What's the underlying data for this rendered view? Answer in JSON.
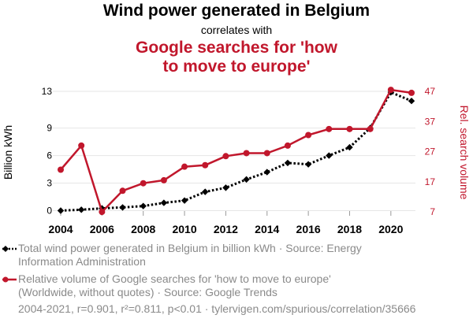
{
  "header": {
    "title": "Wind power generated in Belgium",
    "subtitle": "correlates with",
    "title2_line1": "Google searches for 'how",
    "title2_line2": "to move to europe'"
  },
  "legend": {
    "series1": "Total wind power generated in Belgium in billion kWh · Source: Energy Information Administration",
    "series2": "Relative volume of Google searches for 'how to move to europe' (Worldwide, without quotes) · Source: Google Trends"
  },
  "footer": "2004-2021, r=0.901, r²=0.811, p<0.01 · tylervigen.com/spurious/correlation/35666",
  "chart_data": {
    "type": "line",
    "x": [
      2004,
      2005,
      2006,
      2007,
      2008,
      2009,
      2010,
      2011,
      2012,
      2013,
      2014,
      2015,
      2016,
      2017,
      2018,
      2019,
      2020,
      2021
    ],
    "series": [
      {
        "name": "Total wind power generated in Belgium in billion kWh",
        "axis": "left",
        "color": "#000000",
        "style": "dotted",
        "marker": "diamond",
        "values": [
          0.0,
          0.1,
          0.25,
          0.35,
          0.5,
          0.85,
          1.1,
          2.05,
          2.5,
          3.4,
          4.2,
          5.2,
          5.05,
          6.0,
          6.9,
          9.0,
          12.9,
          11.95
        ]
      },
      {
        "name": "Relative volume of Google searches for 'how to move to europe'",
        "axis": "right",
        "color": "#c1172c",
        "style": "solid",
        "marker": "circle",
        "values": [
          21,
          29,
          7,
          14,
          16.5,
          17.5,
          22,
          22.5,
          25.5,
          26.5,
          26.5,
          29,
          32.5,
          34.5,
          34.5,
          34.5,
          47.5,
          46.5
        ]
      }
    ],
    "left_axis": {
      "label": "Billion kWh",
      "ticks": [
        0,
        3,
        6,
        9,
        13
      ],
      "range": [
        -0.3,
        13
      ]
    },
    "right_axis": {
      "label": "Rel. search volume",
      "ticks": [
        7,
        17,
        27,
        37,
        47
      ],
      "range": [
        6.5,
        47
      ]
    },
    "x_ticks": [
      2004,
      2006,
      2008,
      2010,
      2012,
      2014,
      2016,
      2018,
      2020
    ],
    "x_range": [
      2004,
      2021
    ]
  }
}
